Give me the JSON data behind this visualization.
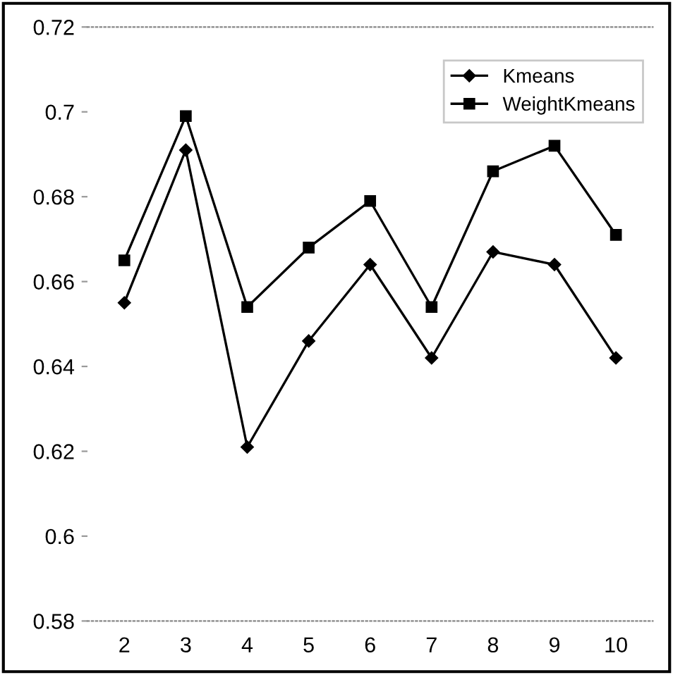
{
  "chart_data": {
    "type": "line",
    "categories": [
      "2",
      "3",
      "4",
      "5",
      "6",
      "7",
      "8",
      "9",
      "10"
    ],
    "series": [
      {
        "name": "Kmeans",
        "color": "#000000",
        "marker": "diamond",
        "values": [
          0.655,
          0.691,
          0.621,
          0.646,
          0.664,
          0.642,
          0.667,
          0.664,
          0.642
        ]
      },
      {
        "name": "WeightKmeans",
        "color": "#000000",
        "marker": "square",
        "values": [
          0.665,
          0.699,
          0.654,
          0.668,
          0.679,
          0.654,
          0.686,
          0.692,
          0.671
        ]
      }
    ],
    "ylim": [
      0.58,
      0.72
    ],
    "yticks": [
      0.58,
      0.6,
      0.62,
      0.64,
      0.66,
      0.68,
      {
        "value": 0.7,
        "label": "0.7"
      },
      0.72
    ],
    "grid": false,
    "legend": "top right",
    "line_style": "solid"
  }
}
